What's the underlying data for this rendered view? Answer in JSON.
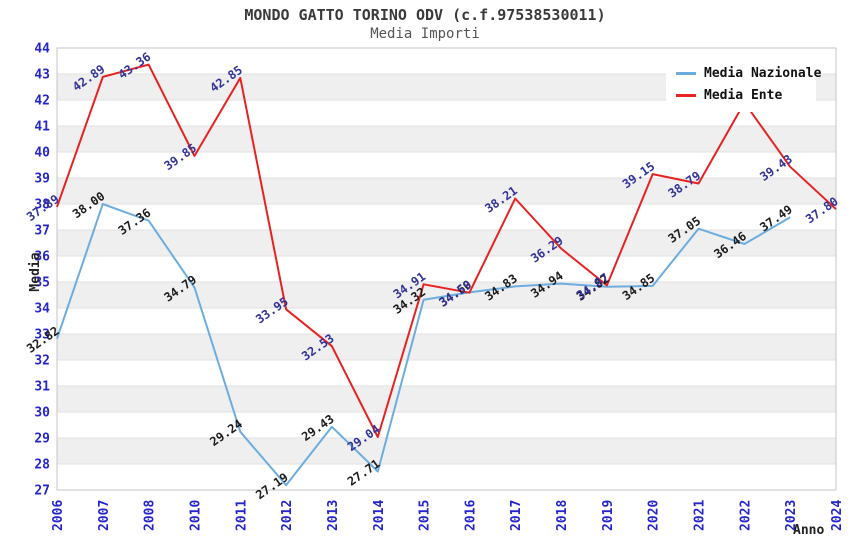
{
  "chart_data": {
    "type": "line",
    "title": "MONDO GATTO TORINO ODV (c.f.97538530011)",
    "subtitle": "Media Importi",
    "xlabel": "Anno",
    "ylabel": "Media",
    "ylim": [
      27,
      44
    ],
    "y_ticks": [
      27,
      28,
      29,
      30,
      31,
      32,
      33,
      34,
      35,
      36,
      37,
      38,
      39,
      40,
      41,
      42,
      43,
      44
    ],
    "categories": [
      "2006",
      "2007",
      "2008",
      "2010",
      "2011",
      "2012",
      "2013",
      "2014",
      "2015",
      "2016",
      "2017",
      "2018",
      "2019",
      "2020",
      "2021",
      "2022",
      "2023",
      "2024"
    ],
    "grid": "horizontal gridlines with alternating gray bands",
    "legend_position": "top-right",
    "colors": {
      "band_fill": "#efefef",
      "grid_line": "#e0e0e0",
      "plot_border": "#c6c6c6",
      "axis_tick_text": "#2525cd",
      "title_text": "#3a3a3a",
      "subtitle_text": "#555555"
    },
    "series": [
      {
        "name": "Media Nazionale",
        "color": "#6caddf",
        "label_color": "#1c1c1c",
        "values": [
          32.82,
          38.0,
          37.36,
          34.79,
          29.24,
          27.19,
          29.43,
          27.71,
          34.32,
          34.6,
          34.83,
          34.94,
          34.82,
          34.85,
          37.05,
          36.46,
          37.49,
          null
        ],
        "labels": [
          "32.82",
          "38.00",
          "37.36",
          "34.79",
          "29.24",
          "27.19",
          "29.43",
          "27.71",
          "34.32",
          "34.60",
          "34.83",
          "34.94",
          "34.82",
          "34.85",
          "37.05",
          "36.46",
          "37.49",
          null
        ]
      },
      {
        "name": "Media Ente",
        "color": "#e62222",
        "label_color": "#333399",
        "values": [
          37.89,
          42.89,
          43.36,
          39.85,
          42.85,
          33.95,
          32.53,
          29.04,
          34.91,
          34.59,
          38.21,
          36.29,
          34.87,
          39.15,
          38.79,
          41.9,
          39.43,
          37.8
        ],
        "labels": [
          "37.89",
          "42.89",
          "43.36",
          "39.85",
          "42.85",
          "33.95",
          "32.53",
          "29.04",
          "34.91",
          "34.59",
          "38.21",
          "36.29",
          "34.87",
          "39.15",
          "38.79",
          null,
          "39.43",
          "37.80"
        ]
      }
    ]
  }
}
